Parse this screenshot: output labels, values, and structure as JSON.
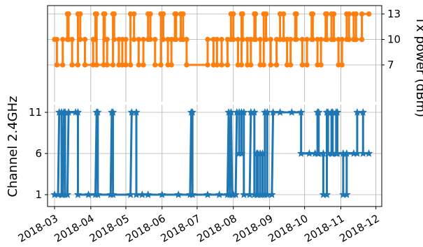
{
  "chart_data": {
    "type": "line",
    "drawstyle": "steps-post",
    "grid": true,
    "x_axis": {
      "type": "date",
      "range": [
        "2018-02-23",
        "2018-12-06"
      ],
      "ticks": [
        "2018-03-01",
        "2018-04-01",
        "2018-05-01",
        "2018-06-01",
        "2018-07-01",
        "2018-08-01",
        "2018-09-01",
        "2018-10-01",
        "2018-11-01",
        "2018-12-01"
      ],
      "tick_labels": [
        "2018-03",
        "2018-04",
        "2018-05",
        "2018-06",
        "2018-07",
        "2018-08",
        "2018-09",
        "2018-10",
        "2018-11",
        "2018-12"
      ]
    },
    "left_axis": {
      "label": "Channel 2.4GHz",
      "ticks": [
        1,
        6,
        11
      ],
      "tick_labels": [
        "1",
        "6",
        "11"
      ]
    },
    "right_axis": {
      "label": "Tx power (dBm)",
      "ticks": [
        7,
        10,
        13
      ],
      "tick_labels": [
        "7",
        "10",
        "13"
      ]
    },
    "series": [
      {
        "axis": "left",
        "color": "#1f77b4",
        "marker": "star",
        "points": [
          [
            "2018-03-01",
            1
          ],
          [
            "2018-03-04",
            1
          ],
          [
            "2018-03-05",
            11
          ],
          [
            "2018-03-07",
            11
          ],
          [
            "2018-03-07",
            1
          ],
          [
            "2018-03-08",
            1
          ],
          [
            "2018-03-09",
            11
          ],
          [
            "2018-03-10",
            11
          ],
          [
            "2018-03-10",
            1
          ],
          [
            "2018-03-12",
            1
          ],
          [
            "2018-03-13",
            11
          ],
          [
            "2018-03-19",
            11
          ],
          [
            "2018-03-21",
            11
          ],
          [
            "2018-03-21",
            1
          ],
          [
            "2018-03-30",
            1
          ],
          [
            "2018-04-05",
            1
          ],
          [
            "2018-04-06",
            11
          ],
          [
            "2018-04-07",
            11
          ],
          [
            "2018-04-07",
            1
          ],
          [
            "2018-04-18",
            1
          ],
          [
            "2018-04-19",
            11
          ],
          [
            "2018-04-20",
            11
          ],
          [
            "2018-04-20",
            1
          ],
          [
            "2018-05-05",
            1
          ],
          [
            "2018-05-06",
            11
          ],
          [
            "2018-05-10",
            11
          ],
          [
            "2018-05-10",
            1
          ],
          [
            "2018-05-15",
            1
          ],
          [
            "2018-05-20",
            1
          ],
          [
            "2018-06-01",
            1
          ],
          [
            "2018-06-15",
            1
          ],
          [
            "2018-06-25",
            1
          ],
          [
            "2018-06-26",
            11
          ],
          [
            "2018-06-27",
            11
          ],
          [
            "2018-06-27",
            1
          ],
          [
            "2018-07-10",
            1
          ],
          [
            "2018-07-20",
            1
          ],
          [
            "2018-07-27",
            1
          ],
          [
            "2018-07-28",
            11
          ],
          [
            "2018-07-29",
            1
          ],
          [
            "2018-07-30",
            11
          ],
          [
            "2018-07-31",
            1
          ],
          [
            "2018-08-01",
            1
          ],
          [
            "2018-08-03",
            1
          ],
          [
            "2018-08-04",
            11
          ],
          [
            "2018-08-06",
            11
          ],
          [
            "2018-08-06",
            6
          ],
          [
            "2018-08-08",
            6
          ],
          [
            "2018-08-08",
            11
          ],
          [
            "2018-08-10",
            11
          ],
          [
            "2018-08-10",
            1
          ],
          [
            "2018-08-15",
            1
          ],
          [
            "2018-08-16",
            11
          ],
          [
            "2018-08-19",
            11
          ],
          [
            "2018-08-19",
            1
          ],
          [
            "2018-08-21",
            1
          ],
          [
            "2018-08-21",
            6
          ],
          [
            "2018-08-22",
            6
          ],
          [
            "2018-08-22",
            1
          ],
          [
            "2018-08-24",
            1
          ],
          [
            "2018-08-24",
            6
          ],
          [
            "2018-08-26",
            6
          ],
          [
            "2018-08-26",
            1
          ],
          [
            "2018-08-28",
            1
          ],
          [
            "2018-08-28",
            11
          ],
          [
            "2018-08-30",
            11
          ],
          [
            "2018-08-30",
            1
          ],
          [
            "2018-09-03",
            1
          ],
          [
            "2018-09-04",
            11
          ],
          [
            "2018-09-10",
            11
          ],
          [
            "2018-09-20",
            11
          ],
          [
            "2018-09-28",
            11
          ],
          [
            "2018-09-28",
            6
          ],
          [
            "2018-10-05",
            6
          ],
          [
            "2018-10-10",
            6
          ],
          [
            "2018-10-12",
            6
          ],
          [
            "2018-10-12",
            11
          ],
          [
            "2018-10-13",
            11
          ],
          [
            "2018-10-13",
            6
          ],
          [
            "2018-10-17",
            6
          ],
          [
            "2018-10-17",
            1
          ],
          [
            "2018-10-20",
            1
          ],
          [
            "2018-10-20",
            11
          ],
          [
            "2018-10-21",
            11
          ],
          [
            "2018-10-21",
            6
          ],
          [
            "2018-10-24",
            6
          ],
          [
            "2018-10-24",
            11
          ],
          [
            "2018-10-25",
            11
          ],
          [
            "2018-10-25",
            6
          ],
          [
            "2018-10-28",
            6
          ],
          [
            "2018-10-28",
            11
          ],
          [
            "2018-10-29",
            11
          ],
          [
            "2018-10-29",
            6
          ],
          [
            "2018-11-03",
            6
          ],
          [
            "2018-11-03",
            1
          ],
          [
            "2018-11-06",
            1
          ],
          [
            "2018-11-06",
            6
          ],
          [
            "2018-11-12",
            6
          ],
          [
            "2018-11-15",
            6
          ],
          [
            "2018-11-15",
            11
          ],
          [
            "2018-11-20",
            11
          ],
          [
            "2018-11-20",
            6
          ],
          [
            "2018-11-25",
            6
          ]
        ]
      },
      {
        "axis": "right",
        "color": "#ff7f0e",
        "marker": "circle",
        "points": [
          [
            "2018-03-01",
            10
          ],
          [
            "2018-03-03",
            10
          ],
          [
            "2018-03-03",
            7
          ],
          [
            "2018-03-08",
            7
          ],
          [
            "2018-03-08",
            10
          ],
          [
            "2018-03-12",
            10
          ],
          [
            "2018-03-12",
            13
          ],
          [
            "2018-03-13",
            13
          ],
          [
            "2018-03-13",
            10
          ],
          [
            "2018-03-16",
            10
          ],
          [
            "2018-03-16",
            7
          ],
          [
            "2018-03-21",
            7
          ],
          [
            "2018-03-21",
            13
          ],
          [
            "2018-03-23",
            13
          ],
          [
            "2018-03-23",
            10
          ],
          [
            "2018-03-27",
            10
          ],
          [
            "2018-03-27",
            7
          ],
          [
            "2018-04-03",
            7
          ],
          [
            "2018-04-03",
            10
          ],
          [
            "2018-04-05",
            10
          ],
          [
            "2018-04-05",
            13
          ],
          [
            "2018-04-06",
            13
          ],
          [
            "2018-04-06",
            7
          ],
          [
            "2018-04-12",
            7
          ],
          [
            "2018-04-12",
            13
          ],
          [
            "2018-04-13",
            13
          ],
          [
            "2018-04-13",
            10
          ],
          [
            "2018-04-15",
            10
          ],
          [
            "2018-04-15",
            7
          ],
          [
            "2018-04-20",
            7
          ],
          [
            "2018-04-20",
            13
          ],
          [
            "2018-04-21",
            13
          ],
          [
            "2018-04-21",
            10
          ],
          [
            "2018-04-25",
            10
          ],
          [
            "2018-04-25",
            7
          ],
          [
            "2018-04-28",
            7
          ],
          [
            "2018-04-28",
            10
          ],
          [
            "2018-05-01",
            10
          ],
          [
            "2018-05-01",
            7
          ],
          [
            "2018-05-05",
            7
          ],
          [
            "2018-05-05",
            13
          ],
          [
            "2018-05-08",
            13
          ],
          [
            "2018-05-08",
            10
          ],
          [
            "2018-05-12",
            10
          ],
          [
            "2018-05-12",
            7
          ],
          [
            "2018-05-16",
            7
          ],
          [
            "2018-05-16",
            10
          ],
          [
            "2018-05-20",
            10
          ],
          [
            "2018-05-20",
            13
          ],
          [
            "2018-05-22",
            13
          ],
          [
            "2018-05-22",
            10
          ],
          [
            "2018-05-26",
            10
          ],
          [
            "2018-05-26",
            7
          ],
          [
            "2018-05-31",
            7
          ],
          [
            "2018-05-31",
            13
          ],
          [
            "2018-06-02",
            13
          ],
          [
            "2018-06-02",
            10
          ],
          [
            "2018-06-06",
            10
          ],
          [
            "2018-06-06",
            7
          ],
          [
            "2018-06-09",
            7
          ],
          [
            "2018-06-09",
            10
          ],
          [
            "2018-06-12",
            10
          ],
          [
            "2018-06-12",
            13
          ],
          [
            "2018-06-13",
            13
          ],
          [
            "2018-06-13",
            10
          ],
          [
            "2018-06-17",
            10
          ],
          [
            "2018-06-17",
            13
          ],
          [
            "2018-06-19",
            13
          ],
          [
            "2018-06-19",
            10
          ],
          [
            "2018-06-22",
            10
          ],
          [
            "2018-06-22",
            7
          ],
          [
            "2018-07-10",
            7
          ],
          [
            "2018-07-10",
            10
          ],
          [
            "2018-07-15",
            10
          ],
          [
            "2018-07-15",
            7
          ],
          [
            "2018-07-18",
            7
          ],
          [
            "2018-07-18",
            10
          ],
          [
            "2018-07-22",
            10
          ],
          [
            "2018-07-22",
            7
          ],
          [
            "2018-07-27",
            7
          ],
          [
            "2018-07-27",
            10
          ],
          [
            "2018-07-30",
            10
          ],
          [
            "2018-07-30",
            13
          ],
          [
            "2018-08-01",
            13
          ],
          [
            "2018-08-01",
            10
          ],
          [
            "2018-08-05",
            10
          ],
          [
            "2018-08-05",
            7
          ],
          [
            "2018-08-08",
            7
          ],
          [
            "2018-08-08",
            13
          ],
          [
            "2018-08-09",
            13
          ],
          [
            "2018-08-09",
            10
          ],
          [
            "2018-08-13",
            10
          ],
          [
            "2018-08-13",
            7
          ],
          [
            "2018-08-16",
            7
          ],
          [
            "2018-08-16",
            10
          ],
          [
            "2018-08-19",
            10
          ],
          [
            "2018-08-19",
            13
          ],
          [
            "2018-08-20",
            13
          ],
          [
            "2018-08-20",
            10
          ],
          [
            "2018-08-24",
            10
          ],
          [
            "2018-08-24",
            7
          ],
          [
            "2018-08-27",
            7
          ],
          [
            "2018-08-27",
            13
          ],
          [
            "2018-08-29",
            13
          ],
          [
            "2018-08-29",
            10
          ],
          [
            "2018-09-02",
            10
          ],
          [
            "2018-09-02",
            7
          ],
          [
            "2018-09-07",
            7
          ],
          [
            "2018-09-07",
            10
          ],
          [
            "2018-09-10",
            10
          ],
          [
            "2018-09-10",
            13
          ],
          [
            "2018-09-13",
            13
          ],
          [
            "2018-09-13",
            10
          ],
          [
            "2018-09-16",
            10
          ],
          [
            "2018-09-16",
            7
          ],
          [
            "2018-09-19",
            7
          ],
          [
            "2018-09-19",
            10
          ],
          [
            "2018-09-23",
            10
          ],
          [
            "2018-09-23",
            13
          ],
          [
            "2018-09-24",
            13
          ],
          [
            "2018-09-24",
            10
          ],
          [
            "2018-09-29",
            10
          ],
          [
            "2018-09-29",
            7
          ],
          [
            "2018-10-03",
            7
          ],
          [
            "2018-10-03",
            10
          ],
          [
            "2018-10-07",
            10
          ],
          [
            "2018-10-07",
            13
          ],
          [
            "2018-10-08",
            13
          ],
          [
            "2018-10-08",
            10
          ],
          [
            "2018-10-12",
            10
          ],
          [
            "2018-10-12",
            7
          ],
          [
            "2018-10-15",
            7
          ],
          [
            "2018-10-15",
            10
          ],
          [
            "2018-10-19",
            10
          ],
          [
            "2018-10-19",
            13
          ],
          [
            "2018-10-20",
            13
          ],
          [
            "2018-10-20",
            10
          ],
          [
            "2018-10-24",
            10
          ],
          [
            "2018-10-24",
            13
          ],
          [
            "2018-10-26",
            13
          ],
          [
            "2018-10-26",
            10
          ],
          [
            "2018-10-30",
            10
          ],
          [
            "2018-10-30",
            7
          ],
          [
            "2018-11-02",
            7
          ],
          [
            "2018-11-02",
            10
          ],
          [
            "2018-11-06",
            10
          ],
          [
            "2018-11-06",
            13
          ],
          [
            "2018-11-08",
            13
          ],
          [
            "2018-11-08",
            10
          ],
          [
            "2018-11-12",
            10
          ],
          [
            "2018-11-12",
            13
          ],
          [
            "2018-11-14",
            13
          ],
          [
            "2018-11-14",
            10
          ],
          [
            "2018-11-19",
            10
          ],
          [
            "2018-11-19",
            13
          ],
          [
            "2018-11-25",
            13
          ]
        ]
      }
    ]
  }
}
